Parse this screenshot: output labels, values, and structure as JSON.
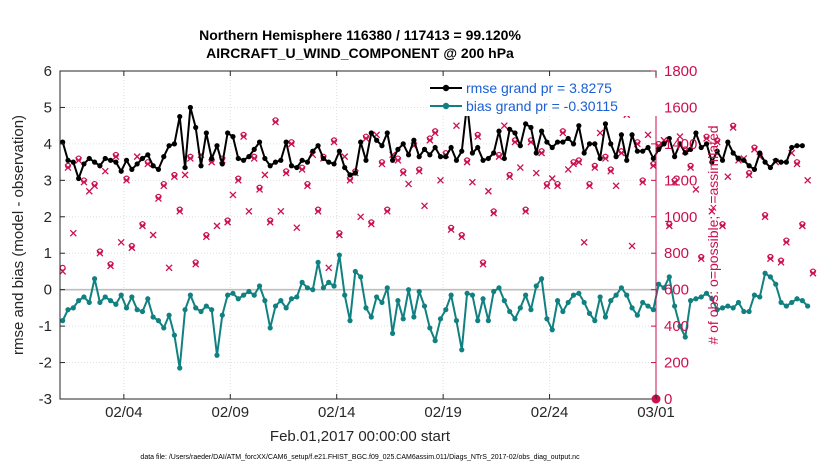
{
  "chart_data": {
    "type": "line",
    "title": "Northern Hemisphere 116380 / 117413 = 99.120%",
    "subtitle": "AIRCRAFT_U_WIND_COMPONENT @ 200 hPa",
    "xlabel": "Feb.01,2017 00:00:00 start",
    "ylabel": "rmse and bias (model - observation)",
    "ylabel_right": "# of obs: o=possible; ×=assimilated",
    "xlim": [
      0,
      28
    ],
    "ylim": [
      -3,
      6
    ],
    "ylim_right": [
      0,
      1800
    ],
    "x_ticks": [
      3,
      8,
      13,
      18,
      23,
      28
    ],
    "x_tick_labels": [
      "02/04",
      "02/09",
      "02/14",
      "02/19",
      "02/24",
      "03/01"
    ],
    "y_ticks": [
      -3,
      -2,
      -1,
      0,
      1,
      2,
      3,
      4,
      5,
      6
    ],
    "y_tick_labels": [
      "-3",
      "-2",
      "-1",
      "0",
      "1",
      "2",
      "3",
      "4",
      "5",
      "6"
    ],
    "y_ticks_right": [
      0,
      200,
      400,
      600,
      800,
      1000,
      1200,
      1400,
      1600,
      1800
    ],
    "y_tick_labels_right": [
      "0",
      "200",
      "400",
      "600",
      "800",
      "1000",
      "1200",
      "1400",
      "1600",
      "1800"
    ],
    "legend": [
      {
        "label": "rmse grand pr = 3.8275",
        "color": "#000000"
      },
      {
        "label": "bias grand pr = -0.30115",
        "color": "#118080"
      }
    ],
    "legend_position": "top-right",
    "x_step_days": 0.25,
    "series": [
      {
        "name": "rmse",
        "color": "#000000",
        "values": [
          4.05,
          3.55,
          3.5,
          3.05,
          3.45,
          3.6,
          3.5,
          3.4,
          3.6,
          3.55,
          3.5,
          3.25,
          3.55,
          3.3,
          3.45,
          3.6,
          3.7,
          3.4,
          3.3,
          3.65,
          3.95,
          4.0,
          4.75,
          3.35,
          5.0,
          4.45,
          3.4,
          4.3,
          3.6,
          3.95,
          3.45,
          4.3,
          4.2,
          3.6,
          3.55,
          3.65,
          3.85,
          4.05,
          3.6,
          3.4,
          3.5,
          3.55,
          4.05,
          3.4,
          3.35,
          3.55,
          3.5,
          3.8,
          3.95,
          3.6,
          3.5,
          3.45,
          3.8,
          3.35,
          3.15,
          3.2,
          4.05,
          3.55,
          4.3,
          4.1,
          3.95,
          4.3,
          3.55,
          3.85,
          4.0,
          3.7,
          4.1,
          3.65,
          3.85,
          3.7,
          3.9,
          3.65,
          3.65,
          3.9,
          3.55,
          3.8,
          5.1,
          3.75,
          3.9,
          3.55,
          3.6,
          3.75,
          4.35,
          3.6,
          4.4,
          4.3,
          3.95,
          4.55,
          4.45,
          3.75,
          4.35,
          4.05,
          3.9,
          4.05,
          4.05,
          4.15,
          4.0,
          4.5,
          3.75,
          4.0,
          4.0,
          3.6,
          4.55,
          4.0,
          3.65,
          4.25,
          3.55,
          4.25,
          3.8,
          3.8,
          3.9,
          3.6,
          3.85,
          4.0,
          4.15,
          3.65,
          4.0,
          3.75,
          3.85,
          4.3,
          3.9,
          4.0,
          3.5,
          3.8,
          3.55,
          4.05,
          3.75,
          3.6,
          3.55,
          3.4,
          3.3,
          3.75,
          3.5,
          3.35,
          3.55,
          3.5,
          3.5,
          3.9,
          3.95,
          3.95
        ]
      },
      {
        "name": "bias",
        "color": "#118080",
        "values": [
          -0.85,
          -0.55,
          -0.5,
          -0.3,
          -0.2,
          -0.35,
          0.3,
          -0.35,
          -0.2,
          -0.3,
          -0.4,
          -0.15,
          -0.5,
          -0.2,
          -0.55,
          -0.6,
          -0.25,
          -0.75,
          -0.85,
          -1.05,
          -0.7,
          -1.25,
          -2.15,
          -0.55,
          -0.15,
          -0.5,
          -0.6,
          -0.45,
          -0.55,
          -1.8,
          -0.7,
          -0.15,
          -0.1,
          -0.25,
          -0.15,
          -0.05,
          -0.15,
          0.1,
          -0.3,
          -1.05,
          -0.45,
          -0.3,
          -0.5,
          -0.25,
          -0.2,
          0.2,
          0.05,
          0.0,
          0.75,
          0.05,
          0.2,
          0.1,
          0.95,
          -0.15,
          -0.85,
          0.5,
          0.35,
          -0.5,
          -0.75,
          -0.2,
          -0.35,
          0.05,
          -1.2,
          -0.3,
          -0.8,
          0.0,
          -0.75,
          -0.05,
          -0.45,
          -1.05,
          -1.4,
          -0.8,
          -0.55,
          -0.15,
          -0.85,
          -1.65,
          -0.1,
          -0.15,
          -0.85,
          -0.25,
          -0.85,
          -0.05,
          0.05,
          -0.3,
          -0.6,
          -0.8,
          -0.5,
          -0.15,
          -0.55,
          0.1,
          0.3,
          -0.8,
          -1.1,
          -0.3,
          -0.6,
          -0.35,
          -0.15,
          -0.1,
          -0.35,
          -0.65,
          -0.85,
          -0.2,
          -0.75,
          -0.3,
          -0.15,
          0.05,
          -0.15,
          -0.5,
          -0.7,
          -0.35,
          -0.45,
          -0.55,
          0.15,
          0.05,
          0.35,
          -0.45,
          -1.0,
          -1.3,
          -0.3,
          -0.25,
          -0.2,
          -0.1,
          -0.25,
          -0.55,
          -0.5,
          -0.45,
          -0.5,
          -0.35,
          -0.6,
          -0.6,
          -0.15,
          -0.2,
          0.45,
          0.35,
          0.15,
          -0.35,
          -0.45,
          -0.35,
          -0.25,
          -0.3,
          -0.45
        ]
      },
      {
        "name": "# obs possible",
        "color": "#cc0f50",
        "marker": "o",
        "axis": "right",
        "values": [
          720,
          1280,
          920,
          1320,
          1200,
          1150,
          1180,
          810,
          1260,
          740,
          1340,
          870,
          1210,
          840,
          1340,
          960,
          1300,
          910,
          1110,
          1180,
          730,
          1230,
          1040,
          1240,
          1330,
          750,
          1350,
          900,
          1310,
          960,
          1320,
          980,
          1130,
          1210,
          1450,
          1040,
          1330,
          1160,
          1240,
          980,
          1530,
          1040,
          1250,
          1410,
          950,
          1270,
          1180,
          1350,
          1040,
          1330,
          730,
          1420,
          910,
          1340,
          1210,
          1250,
          1010,
          1440,
          970,
          1460,
          1300,
          1040,
          1350,
          1320,
          1250,
          1190,
          1400,
          1260,
          1070,
          1430,
          1470,
          1210,
          1350,
          940,
          1510,
          900,
          1310,
          1200,
          1450,
          750,
          1150,
          1030,
          1340,
          1510,
          1230,
          1420,
          1280,
          1040,
          1420,
          1250,
          1360,
          1180,
          1220,
          1180,
          1470,
          1270,
          1300,
          1310,
          870,
          1180,
          1280,
          1470,
          1330,
          1260,
          1180,
          1360,
          1570,
          850,
          1410,
          1200,
          1460,
          1290,
          1400,
          1430,
          960,
          1200,
          1450,
          1370,
          1280,
          1160,
          780,
          1440,
          1040,
          1420,
          960,
          1230,
          1500,
          1320,
          1330,
          1240,
          1380,
          1340,
          1010,
          780,
          1310,
          760,
          870,
          1360,
          1300,
          960,
          1210,
          700
        ]
      },
      {
        "name": "# obs assimilated",
        "color": "#cc0f50",
        "marker": "x",
        "axis": "right",
        "values": [
          700,
          1270,
          910,
          1310,
          1190,
          1140,
          1170,
          800,
          1250,
          730,
          1330,
          860,
          1200,
          830,
          1330,
          950,
          1290,
          900,
          1100,
          1170,
          720,
          1220,
          1030,
          1230,
          1320,
          740,
          1340,
          890,
          1300,
          950,
          1310,
          970,
          1120,
          1200,
          1440,
          1030,
          1320,
          1150,
          1230,
          970,
          1520,
          1030,
          1240,
          1400,
          940,
          1260,
          1170,
          1340,
          1030,
          1320,
          720,
          1410,
          900,
          1330,
          1200,
          1240,
          1000,
          1430,
          960,
          1450,
          1290,
          1030,
          1340,
          1310,
          1240,
          1180,
          1390,
          1250,
          1060,
          1420,
          1460,
          1200,
          1340,
          930,
          1500,
          890,
          1300,
          1190,
          1440,
          740,
          1140,
          1020,
          1330,
          1500,
          1220,
          1410,
          1270,
          1030,
          1410,
          1240,
          1350,
          1170,
          1210,
          1170,
          1460,
          1260,
          1290,
          1300,
          860,
          1170,
          1270,
          1460,
          1320,
          1250,
          1170,
          1350,
          1560,
          840,
          1400,
          1190,
          1450,
          1280,
          1390,
          1420,
          950,
          1190,
          1440,
          1360,
          1270,
          1150,
          770,
          1430,
          1030,
          1410,
          950,
          1220,
          1490,
          1310,
          1320,
          1230,
          1370,
          1330,
          1000,
          770,
          1300,
          750,
          860,
          1350,
          1290,
          950,
          1200,
          690
        ]
      }
    ],
    "zero_line": 0,
    "footnote": "data file: /Users/raeder/DAI/ATM_forcXX/CAM6_setup/f.e21.FHIST_BGC.f09_025.CAM6assim.011/Diags_NTrS_2017-02/obs_diag_output.nc"
  }
}
